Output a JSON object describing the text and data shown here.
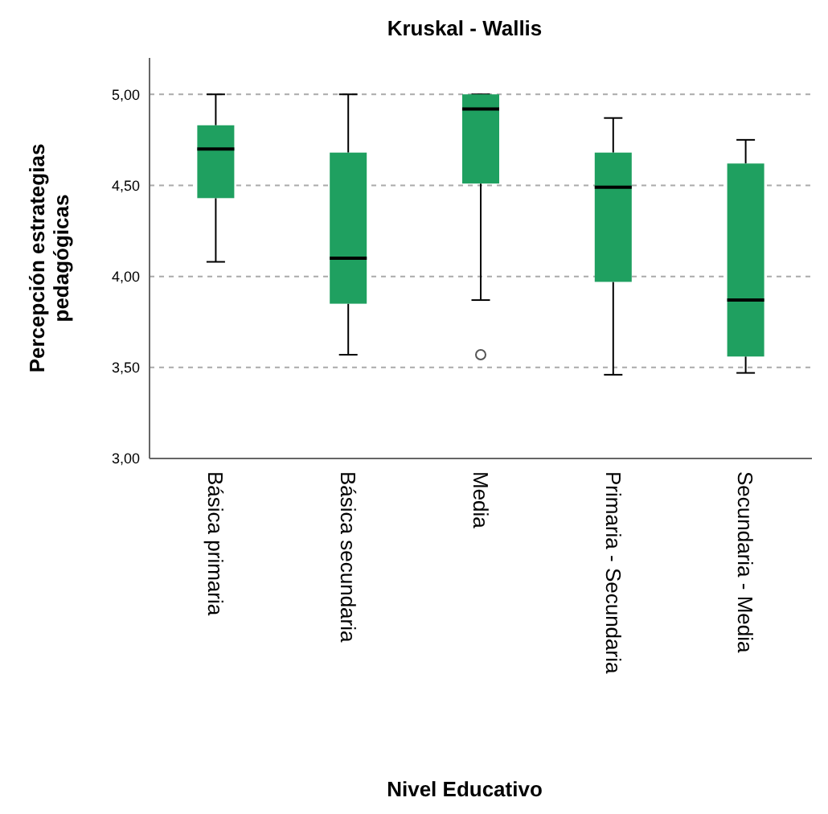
{
  "chart_data": {
    "type": "box",
    "title": "Kruskal - Wallis",
    "xlabel": "Nivel Educativo",
    "ylabel": "Percepción estrategias pedagógicas",
    "categories": [
      "Básica primaria",
      "Básica secundaria",
      "Media",
      "Primaria - Secundaria",
      "Secundaria - Media"
    ],
    "color": "#1fa060",
    "boxes": [
      {
        "low": 4.08,
        "q1": 4.43,
        "median": 4.7,
        "q3": 4.83,
        "high": 5.0
      },
      {
        "low": 3.57,
        "q1": 3.85,
        "median": 4.1,
        "q3": 4.68,
        "high": 5.0
      },
      {
        "low": 3.87,
        "q1": 4.51,
        "median": 4.92,
        "q3": 5.0,
        "high": 5.0,
        "outliers": [
          3.57
        ]
      },
      {
        "low": 3.46,
        "q1": 3.97,
        "median": 4.49,
        "q3": 4.68,
        "high": 4.87
      },
      {
        "low": 3.47,
        "q1": 3.56,
        "median": 3.87,
        "q3": 4.62,
        "high": 4.75
      }
    ],
    "ylim": [
      3.0,
      5.2
    ],
    "yticks": [
      {
        "value": 3,
        "label": "3,00"
      },
      {
        "value": 3.5,
        "label": "3,50"
      },
      {
        "value": 4,
        "label": "4,00"
      },
      {
        "value": 4.5,
        "label": "4,50"
      },
      {
        "value": 5,
        "label": "5,00"
      }
    ],
    "grid": "y"
  }
}
